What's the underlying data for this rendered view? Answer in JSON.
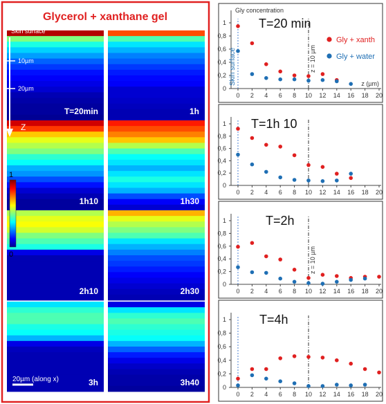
{
  "left_panel": {
    "title": "Glycerol + xanthane gel",
    "skin_label": "Skin surface",
    "depth_labels": [
      "10µm",
      "20µm"
    ],
    "axis_label": "Z",
    "scale_bar_label": "20µm (along x)",
    "colorbar": {
      "max_label": "1",
      "min_label": "0"
    },
    "tiles": [
      {
        "time": "T=20min",
        "rows": [
          0.95,
          0.5,
          0.4,
          0.33,
          0.28,
          0.22,
          0.18,
          0.14,
          0.12,
          0.1,
          0.08,
          0.05,
          0.04,
          0.03,
          0.03,
          0.02
        ]
      },
      {
        "time": "1h",
        "rows": [
          0.8,
          0.45,
          0.35,
          0.3,
          0.25,
          0.22,
          0.18,
          0.15,
          0.13,
          0.12,
          0.08,
          0.08,
          0.07,
          0.06,
          0.05,
          0.05
        ]
      },
      {
        "time": "1h10",
        "rows": [
          0.92,
          0.82,
          0.68,
          0.6,
          0.55,
          0.5,
          0.42,
          0.38,
          0.3,
          0.27,
          0.2,
          0.14,
          0.08,
          0.05,
          0.03,
          0.03
        ]
      },
      {
        "time": "1h30",
        "rows": [
          0.85,
          0.8,
          0.75,
          0.68,
          0.55,
          0.45,
          0.38,
          0.35,
          0.3,
          0.35,
          0.4,
          0.35,
          0.3,
          0.2,
          0.12,
          0.08
        ]
      },
      {
        "time": "2h10",
        "rows": [
          0.55,
          0.6,
          0.62,
          0.58,
          0.5,
          0.45,
          0.4,
          0.1,
          0.05,
          0.05,
          0.05,
          0.05,
          0.05,
          0.05,
          0.05,
          0.05
        ]
      },
      {
        "time": "2h30",
        "rows": [
          0.7,
          0.6,
          0.55,
          0.5,
          0.45,
          0.35,
          0.3,
          0.25,
          0.2,
          0.18,
          0.15,
          0.12,
          0.1,
          0.08,
          0.06,
          0.05
        ]
      },
      {
        "time": "3h",
        "rows": [
          0.35,
          0.42,
          0.45,
          0.45,
          0.4,
          0.38,
          0.3,
          0.1,
          0.06,
          0.05,
          0.05,
          0.05,
          0.05,
          0.05,
          0.05,
          0.05
        ]
      },
      {
        "time": "3h40",
        "rows": [
          0.1,
          0.35,
          0.42,
          0.45,
          0.42,
          0.4,
          0.38,
          0.3,
          0.22,
          0.15,
          0.1,
          0.07,
          0.05,
          0.04,
          0.04,
          0.03
        ]
      }
    ]
  },
  "chart_data": [
    {
      "type": "scatter",
      "title": "T=20 min",
      "ylabel": "Gly concentration",
      "xlabel": "z (µm)",
      "x_ticks": [
        "0",
        "2",
        "4",
        "6",
        "8",
        "10",
        "12",
        "14",
        "16",
        "18",
        "20"
      ],
      "y_ticks": [
        "0",
        "0,2",
        "0,4",
        "0,6",
        "0,8",
        "1"
      ],
      "xlim": [
        0,
        20
      ],
      "ylim": [
        0,
        1
      ],
      "vline_blue": {
        "x": 0,
        "label": "Skin surface"
      },
      "vline_black": {
        "x": 10,
        "label": "z = 10 µm"
      },
      "legend": [
        "Gly + xanth",
        "Gly + water"
      ],
      "legend_position": "top-right",
      "series": [
        {
          "name": "Gly + xanth",
          "color": "#e02020",
          "x": [
            0,
            2,
            4,
            6,
            8,
            10,
            12,
            14
          ],
          "y": [
            0.95,
            0.69,
            0.37,
            0.26,
            0.2,
            0.19,
            0.22,
            0.13
          ]
        },
        {
          "name": "Gly + water",
          "color": "#1f6fb4",
          "x": [
            0,
            2,
            4,
            6,
            8,
            10,
            12,
            14,
            16
          ],
          "y": [
            0.57,
            0.22,
            0.16,
            0.14,
            0.14,
            0.12,
            0.13,
            0.11,
            0.07
          ]
        }
      ]
    },
    {
      "type": "scatter",
      "title": "T=1h 10",
      "x_ticks": [
        "0",
        "2",
        "4",
        "6",
        "8",
        "10",
        "12",
        "14",
        "16",
        "18",
        "20"
      ],
      "y_ticks": [
        "0",
        "0,2",
        "0,4",
        "0,6",
        "0,8",
        "1"
      ],
      "xlim": [
        0,
        20
      ],
      "ylim": [
        0,
        1
      ],
      "vline_blue": {
        "x": 0
      },
      "vline_black": {
        "x": 10
      },
      "series": [
        {
          "color": "#e02020",
          "x": [
            0,
            2,
            4,
            6,
            8,
            10,
            12,
            14,
            16
          ],
          "y": [
            0.92,
            0.77,
            0.66,
            0.63,
            0.49,
            0.33,
            0.3,
            0.19,
            0.12
          ]
        },
        {
          "color": "#1f6fb4",
          "x": [
            0,
            2,
            4,
            6,
            8,
            10,
            12,
            14,
            16
          ],
          "y": [
            0.5,
            0.34,
            0.22,
            0.13,
            0.09,
            0.08,
            0.07,
            0.08,
            0.19
          ]
        }
      ]
    },
    {
      "type": "scatter",
      "title": "T=2h",
      "x_ticks": [
        "0",
        "2",
        "4",
        "6",
        "8",
        "10",
        "12",
        "14",
        "16",
        "18",
        "20"
      ],
      "y_ticks": [
        "0",
        "0,2",
        "0,4",
        "0,6",
        "0,8",
        "1"
      ],
      "xlim": [
        0,
        20
      ],
      "ylim": [
        0,
        1
      ],
      "vline_blue": {
        "x": 0
      },
      "vline_black": {
        "x": 10,
        "label": "z = 10 µm"
      },
      "series": [
        {
          "color": "#e02020",
          "x": [
            0,
            2,
            4,
            6,
            8,
            10,
            12,
            14,
            16,
            18,
            20
          ],
          "y": [
            0.59,
            0.65,
            0.44,
            0.39,
            0.23,
            0.1,
            0.15,
            0.13,
            0.1,
            0.12,
            0.12
          ]
        },
        {
          "color": "#1f6fb4",
          "x": [
            0,
            2,
            4,
            6,
            8,
            10,
            12,
            14,
            16,
            18
          ],
          "y": [
            0.27,
            0.19,
            0.18,
            0.09,
            0.04,
            0.02,
            0.01,
            0.04,
            0.07,
            0.09
          ]
        }
      ]
    },
    {
      "type": "scatter",
      "title": "T=4h",
      "x_ticks": [
        "0",
        "2",
        "4",
        "6",
        "8",
        "10",
        "12",
        "14",
        "16",
        "18",
        "20"
      ],
      "y_ticks": [
        "0",
        "0,2",
        "0,4",
        "0,6",
        "0,8",
        "1"
      ],
      "xlim": [
        0,
        20
      ],
      "ylim": [
        0,
        1
      ],
      "vline_blue": {
        "x": 0
      },
      "vline_black": {
        "x": 10
      },
      "series": [
        {
          "color": "#e02020",
          "x": [
            0,
            2,
            4,
            6,
            8,
            10,
            12,
            14,
            16,
            18,
            20
          ],
          "y": [
            0.13,
            0.27,
            0.27,
            0.43,
            0.46,
            0.45,
            0.44,
            0.4,
            0.35,
            0.27,
            0.22
          ]
        },
        {
          "color": "#1f6fb4",
          "x": [
            0,
            2,
            4,
            6,
            8,
            10,
            12,
            14,
            16,
            18
          ],
          "y": [
            0.03,
            0.18,
            0.13,
            0.09,
            0.06,
            0.02,
            0.02,
            0.04,
            0.03,
            0.04
          ]
        }
      ]
    }
  ]
}
